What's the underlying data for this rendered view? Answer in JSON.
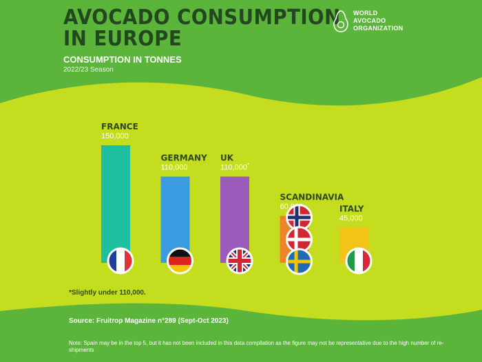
{
  "header": {
    "title": "AVOCADO CONSUMPTION\nIN EUROPE",
    "subtitle": "CONSUMPTION IN TONNES",
    "season": "2022/23 Season"
  },
  "logo": {
    "line1": "WORLD",
    "line2": "AVOCADO",
    "line3": "ORGANIZATION",
    "icon": "avocado-outline-icon"
  },
  "colors": {
    "green": "#5bb53a",
    "yellow_green": "#c5dd1f",
    "dark_green": "#23471f"
  },
  "chart_data": {
    "type": "bar",
    "title": "",
    "xlabel": "",
    "ylabel": "",
    "categories": [
      "FRANCE",
      "GERMANY",
      "UK",
      "SCANDINAVIA",
      "ITALY"
    ],
    "values": [
      150000,
      110000,
      110000,
      60000,
      45000
    ],
    "value_labels": [
      "150,000",
      "110,000",
      "110,000",
      "60,000",
      "45,000"
    ],
    "footnote_marks": [
      "",
      "",
      "*",
      "",
      ""
    ],
    "colors": [
      "#1fbfa1",
      "#3a9be0",
      "#9b5bbd",
      "#ee8428",
      "#f2c418"
    ],
    "flags": [
      [
        "france-flag-icon"
      ],
      [
        "germany-flag-icon"
      ],
      [
        "uk-flag-icon"
      ],
      [
        "norway-flag-icon",
        "denmark-flag-icon",
        "sweden-flag-icon"
      ],
      [
        "italy-flag-icon"
      ]
    ],
    "ylim": [
      0,
      150000
    ],
    "grid": false,
    "legend": "none"
  },
  "footnote": "*Slightly under 110,000.",
  "source": "Source: Fruitrop Magazine n°289 (Sept-Oct 2023)",
  "note": "Note: Spain may be in the top 5, but it has not been included in this data compilation as the figure may not be representative due to the high number of re-shipments"
}
